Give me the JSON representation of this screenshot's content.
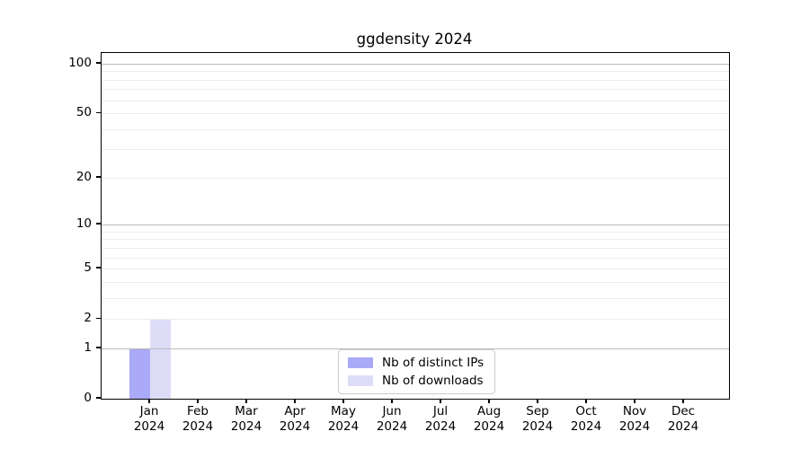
{
  "title": "ggdensity 2024",
  "chart_data": {
    "type": "bar",
    "title": "ggdensity 2024",
    "year_label": "2024",
    "categories": [
      "Jan",
      "Feb",
      "Mar",
      "Apr",
      "May",
      "Jun",
      "Jul",
      "Aug",
      "Sep",
      "Oct",
      "Nov",
      "Dec"
    ],
    "series": [
      {
        "name": "Nb of distinct IPs",
        "color": "#aaaaf8",
        "values": [
          1,
          0,
          0,
          0,
          0,
          0,
          0,
          0,
          0,
          0,
          0,
          0
        ]
      },
      {
        "name": "Nb of downloads",
        "color": "#ddddf8",
        "values": [
          2,
          0,
          0,
          0,
          0,
          0,
          0,
          0,
          0,
          0,
          0,
          0
        ]
      }
    ],
    "xlabel": "",
    "ylabel": "",
    "yscale": "log1p",
    "ylim": [
      0,
      100
    ],
    "yticks": [
      0,
      1,
      2,
      5,
      10,
      20,
      50,
      100
    ],
    "gridlines": {
      "major": [
        1,
        10,
        100
      ],
      "minor": [
        2,
        3,
        4,
        5,
        6,
        7,
        8,
        9,
        20,
        30,
        40,
        50,
        60,
        70,
        80,
        90
      ]
    },
    "grid": "on",
    "legend_position": "bottom-center"
  },
  "colors": {
    "background": "#ffffff",
    "axis": "#000000",
    "grid_major": "#bbbbbb",
    "grid_minor": "#ededed",
    "series_ips": "#aaaaf8",
    "series_downloads": "#ddddf8"
  }
}
